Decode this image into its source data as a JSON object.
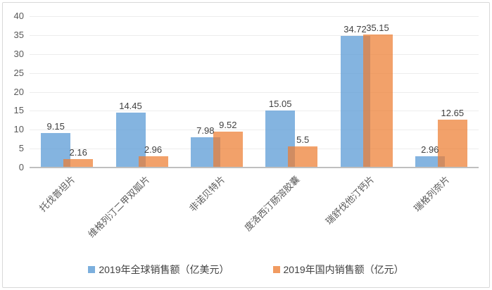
{
  "chart_data": {
    "type": "bar",
    "categories": [
      "托伐普坦片",
      "维格列汀二甲双胍片",
      "非诺贝特片",
      "度洛西汀肠溶胶囊",
      "瑞舒伐他汀钙片",
      "瑞格列奈片"
    ],
    "series": [
      {
        "name": "2019年全球销售额（亿美元）",
        "color": "#5B9BD5",
        "fill_opacity": 0.75,
        "values": [
          9.15,
          14.45,
          7.98,
          15.05,
          34.72,
          2.96
        ]
      },
      {
        "name": "2019年国内销售额（亿元）",
        "color": "#ED7D31",
        "fill_opacity": 0.72,
        "values": [
          2.16,
          2.96,
          9.52,
          5.5,
          35.15,
          12.65
        ]
      }
    ],
    "title": "",
    "xlabel": "",
    "ylabel": "",
    "ylim": [
      0,
      40
    ],
    "ytick_step": 5,
    "ytick_labels": [
      "0",
      "5",
      "10",
      "15",
      "20",
      "25",
      "30",
      "35",
      "40"
    ],
    "grid": true,
    "value_labels": true,
    "legend_position": "bottom",
    "colors": {
      "gridline": "#EDEDED",
      "axis_line": "#BFBFBF",
      "tick_text": "#595959",
      "label_text": "#404040",
      "frame_border": "#D9D9D9"
    }
  }
}
